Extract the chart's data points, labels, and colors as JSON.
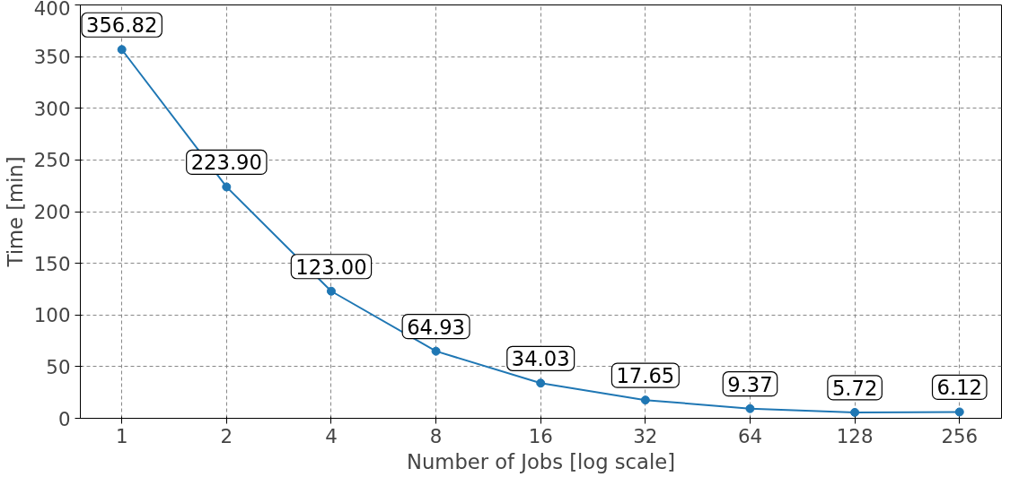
{
  "chart_data": {
    "type": "line",
    "xlabel": "Number of Jobs [log scale]",
    "ylabel": "Time [min]",
    "x": [
      1,
      2,
      4,
      8,
      16,
      32,
      64,
      128,
      256
    ],
    "series": [
      {
        "color": "#1f77b4",
        "values": [
          356.82,
          223.9,
          123.0,
          64.93,
          34.03,
          17.65,
          9.37,
          5.72,
          6.12
        ],
        "value_labels": [
          "356.82",
          "223.90",
          "123.00",
          "64.93",
          "34.03",
          "17.65",
          "9.37",
          "5.72",
          "6.12"
        ]
      }
    ],
    "log": "x",
    "xlim": [
      0.76,
      338
    ],
    "ylim": [
      0,
      400
    ],
    "xticks": [
      1,
      2,
      4,
      8,
      16,
      32,
      64,
      128,
      256
    ],
    "yticks": [
      0,
      50,
      100,
      150,
      200,
      250,
      300,
      350,
      400
    ],
    "grid": true,
    "marker": "circle",
    "line_style": "solid"
  }
}
